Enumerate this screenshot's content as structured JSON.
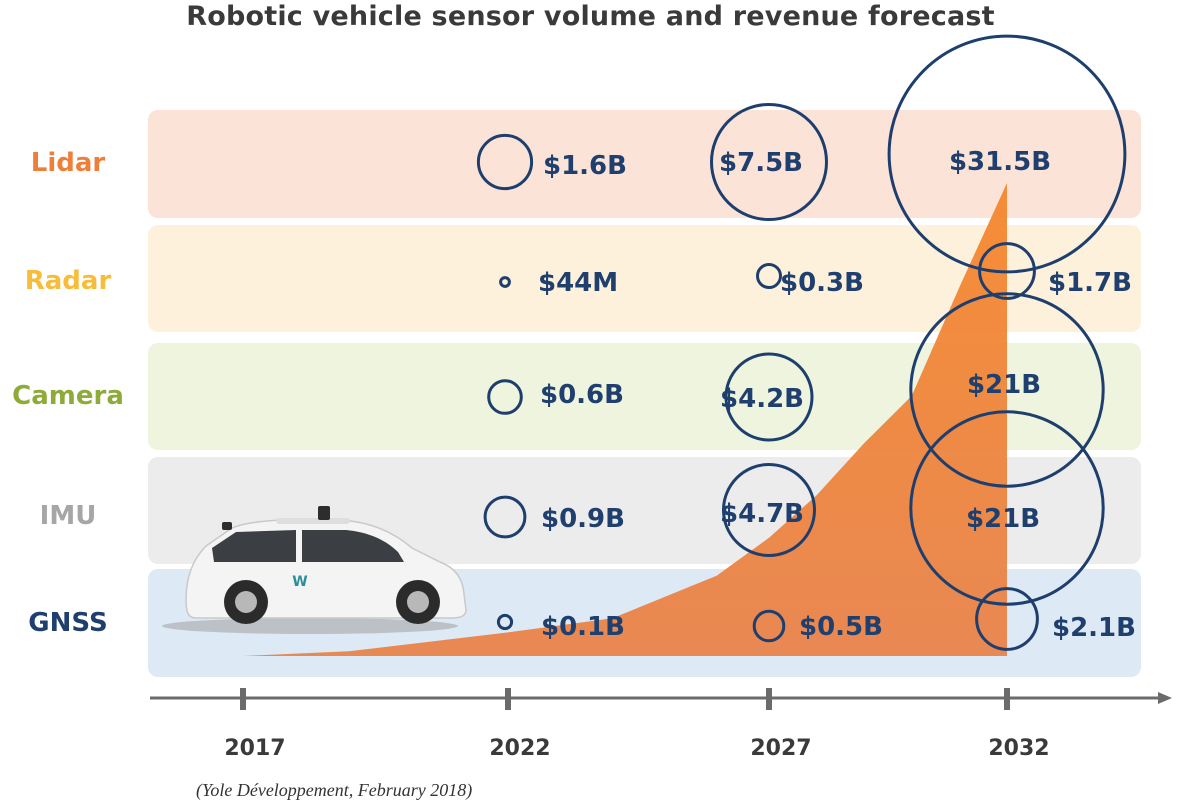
{
  "colors": {
    "bubble": "#1e3f6e",
    "value_text": "#1f3f6e",
    "area_fill": "#f08a3c",
    "axis": "#6b6b6b"
  },
  "chart_data": {
    "type": "bubble",
    "title": "Robotic vehicle sensor volume and revenue forecast",
    "source": "(Yole Développement, February 2018)",
    "x": [
      2017,
      2022,
      2027,
      2032
    ],
    "x_tick_labels": [
      "2017",
      "2022",
      "2027",
      "2032"
    ],
    "categories": [
      "Lidar",
      "Radar",
      "Camera",
      "IMU",
      "GNSS"
    ],
    "category_colors": {
      "Lidar": {
        "label": "#ee7f3b",
        "band": "#fbe3d8"
      },
      "Radar": {
        "label": "#f7bd3a",
        "band": "#fdf1dc"
      },
      "Camera": {
        "label": "#8eaa38",
        "band": "#eef4dd"
      },
      "IMU": {
        "label": "#a6a6a6",
        "band": "#ececec"
      },
      "GNSS": {
        "label": "#1f3f6e",
        "band": "#dde9f4"
      }
    },
    "series": [
      {
        "name": "Lidar",
        "values_usd_billion": [
          null,
          1.6,
          7.5,
          31.5
        ],
        "labels": [
          "",
          "$1.6B",
          "$7.5B",
          "$31.5B"
        ]
      },
      {
        "name": "Radar",
        "values_usd_billion": [
          null,
          0.044,
          0.3,
          1.7
        ],
        "labels": [
          "",
          "$44M",
          "$0.3B",
          "$1.7B"
        ]
      },
      {
        "name": "Camera",
        "values_usd_billion": [
          null,
          0.6,
          4.2,
          21
        ],
        "labels": [
          "",
          "$0.6B",
          "$4.2B",
          "$21B"
        ]
      },
      {
        "name": "IMU",
        "values_usd_billion": [
          null,
          0.9,
          4.7,
          21
        ],
        "labels": [
          "",
          "$0.9B",
          "$4.7B",
          "$21B"
        ]
      },
      {
        "name": "GNSS",
        "values_usd_billion": [
          null,
          0.1,
          0.5,
          2.1
        ],
        "labels": [
          "",
          "$0.1B",
          "$0.5B",
          "$2.1B"
        ]
      }
    ],
    "area_series": {
      "name": "volume growth (illustrative)",
      "x": [
        2017,
        2019,
        2022,
        2024,
        2026,
        2027,
        2028,
        2029,
        2030,
        2031,
        2032
      ],
      "relative_values": [
        0.0,
        0.01,
        0.05,
        0.08,
        0.17,
        0.25,
        0.34,
        0.45,
        0.55,
        0.78,
        1.0
      ]
    },
    "legend": "none",
    "grid": false
  }
}
